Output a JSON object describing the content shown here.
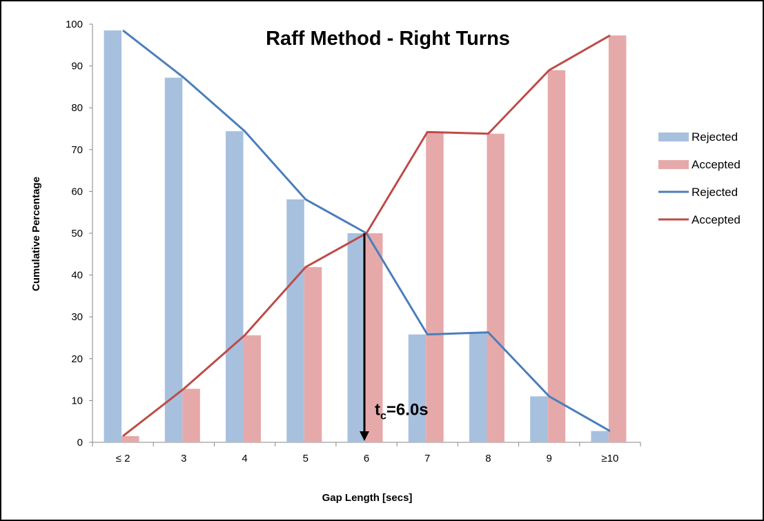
{
  "chart_data": {
    "type": "bar",
    "title": "Raff Method - Right Turns",
    "xlabel": "Gap Length [secs]",
    "ylabel": "Cumulative Percentage",
    "ylim": [
      0,
      100
    ],
    "yticks": [
      0,
      10,
      20,
      30,
      40,
      50,
      60,
      70,
      80,
      90,
      100
    ],
    "grid": false,
    "legend_position": "right",
    "categories": [
      "≤ 2",
      "3",
      "4",
      "5",
      "6",
      "7",
      "8",
      "9",
      "≥10"
    ],
    "series": [
      {
        "name": "Rejected",
        "kind": "bar",
        "color": "#a7c0de",
        "values": [
          98.5,
          87.2,
          74.4,
          58.1,
          50.0,
          25.8,
          26.3,
          11.0,
          2.7
        ]
      },
      {
        "name": "Accepted",
        "kind": "bar",
        "color": "#e6a9aa",
        "values": [
          1.5,
          12.8,
          25.6,
          41.9,
          50.0,
          74.2,
          73.8,
          89.0,
          97.3
        ]
      },
      {
        "name": "Rejected",
        "kind": "line",
        "color": "#4a7ebb",
        "values": [
          98.5,
          87.2,
          74.4,
          58.1,
          50.0,
          25.8,
          26.3,
          11.0,
          2.7
        ]
      },
      {
        "name": "Accepted",
        "kind": "line",
        "color": "#be4b48",
        "values": [
          1.5,
          12.8,
          25.6,
          41.9,
          50.0,
          74.2,
          73.8,
          89.0,
          97.3
        ]
      }
    ],
    "annotation": {
      "text_main": "t",
      "text_sub": "c",
      "text_rest": "=6.0s",
      "category": "6",
      "from_value": 50,
      "to_value": 0
    }
  }
}
